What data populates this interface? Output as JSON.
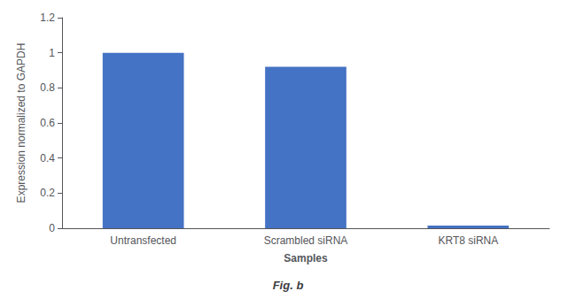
{
  "chart_data": {
    "type": "bar",
    "title": "Fig. b",
    "categories": [
      "Untransfected",
      "Scrambled siRNA",
      "KRT8 siRNA"
    ],
    "values": [
      1.0,
      0.92,
      0.015
    ],
    "color": "#4472c4",
    "xlabel": "Samples",
    "ylabel": "Expression normalized to GAPDH",
    "ylim": [
      0,
      1.2
    ],
    "yticks": [
      0,
      0.2,
      0.4,
      0.6,
      0.8,
      1,
      1.2
    ],
    "grid": false
  }
}
